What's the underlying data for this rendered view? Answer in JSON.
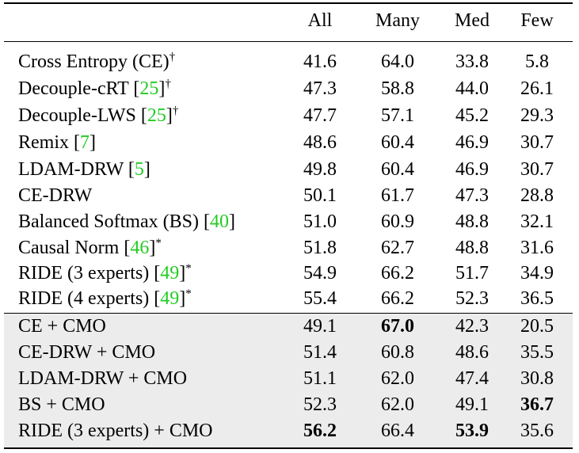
{
  "header": {
    "all": "All",
    "many": "Many",
    "med": "Med",
    "few": "Few"
  },
  "rows": [
    {
      "label": "Cross Entropy (CE)",
      "ref": "",
      "mark": "†",
      "all": "41.6",
      "many": "64.0",
      "med": "33.8",
      "few": "5.8"
    },
    {
      "label": "Decouple-cRT ",
      "ref": "25",
      "mark": "†",
      "all": "47.3",
      "many": "58.8",
      "med": "44.0",
      "few": "26.1"
    },
    {
      "label": "Decouple-LWS ",
      "ref": "25",
      "mark": "†",
      "all": "47.7",
      "many": "57.1",
      "med": "45.2",
      "few": "29.3"
    },
    {
      "label": "Remix ",
      "ref": "7",
      "mark": "",
      "all": "48.6",
      "many": "60.4",
      "med": "46.9",
      "few": "30.7"
    },
    {
      "label": "LDAM-DRW ",
      "ref": "5",
      "mark": "",
      "all": "49.8",
      "many": "60.4",
      "med": "46.9",
      "few": "30.7"
    },
    {
      "label": "CE-DRW",
      "ref": "",
      "mark": "",
      "all": "50.1",
      "many": "61.7",
      "med": "47.3",
      "few": "28.8"
    },
    {
      "label": "Balanced Softmax (BS) ",
      "ref": "40",
      "mark": "",
      "all": "51.0",
      "many": "60.9",
      "med": "48.8",
      "few": "32.1"
    },
    {
      "label": "Causal Norm ",
      "ref": "46",
      "mark": "*",
      "all": "51.8",
      "many": "62.7",
      "med": "48.8",
      "few": "31.6"
    },
    {
      "label": "RIDE (3 experts) ",
      "ref": "49",
      "mark": "*",
      "all": "54.9",
      "many": "66.2",
      "med": "51.7",
      "few": "34.9"
    },
    {
      "label": "RIDE (4 experts) ",
      "ref": "49",
      "mark": "*",
      "all": "55.4",
      "many": "66.2",
      "med": "52.3",
      "few": "36.5"
    },
    {
      "label": "CE + CMO",
      "ref": "",
      "mark": "",
      "all": "49.1",
      "many": "67.0",
      "med": "42.3",
      "few": "20.5"
    },
    {
      "label": "CE-DRW + CMO",
      "ref": "",
      "mark": "",
      "all": "51.4",
      "many": "60.8",
      "med": "48.6",
      "few": "35.5"
    },
    {
      "label": "LDAM-DRW + CMO",
      "ref": "",
      "mark": "",
      "all": "51.1",
      "many": "62.0",
      "med": "47.4",
      "few": "30.8"
    },
    {
      "label": "BS + CMO",
      "ref": "",
      "mark": "",
      "all": "52.3",
      "many": "62.0",
      "med": "49.1",
      "few": "36.7"
    },
    {
      "label": "RIDE (3 experts) + CMO",
      "ref": "",
      "mark": "",
      "all": "56.2",
      "many": "66.4",
      "med": "53.9",
      "few": "35.6"
    }
  ],
  "style": {
    "ref_color": "#22cc22",
    "highlight_bg": "#ececec"
  }
}
